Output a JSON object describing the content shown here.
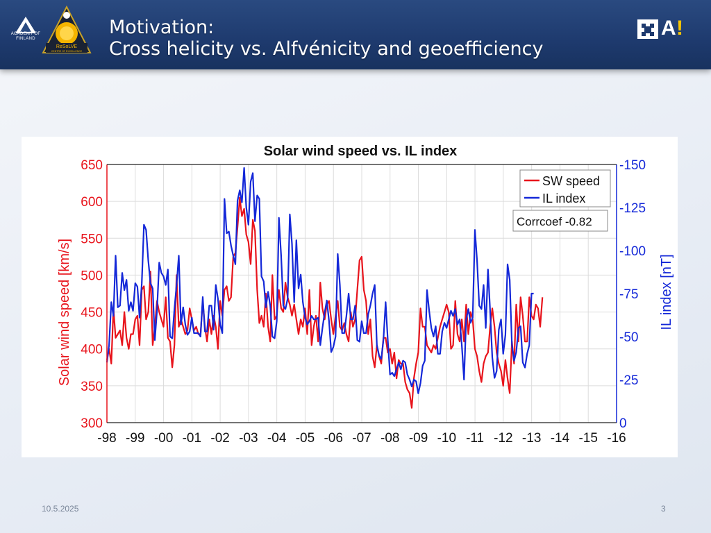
{
  "slide": {
    "title_line1": "Motivation:",
    "title_line2": "Cross helicity vs. Alfvénicity and geoefficiency",
    "date": "10.5.2025",
    "page_number": "3",
    "logo_left_text": "ACADEMY OF FINLAND",
    "logo_center_text": "ReSoLVE",
    "logo_center_subtext": "CENTRE OF EXCELLENCE",
    "logo_right_text": "A",
    "logo_right_accent": "!"
  },
  "chart_data": {
    "type": "line",
    "title": "Solar wind speed vs. IL index",
    "ylabel": "Solar wind speed [km/s]",
    "y2label": "IL index [nT]",
    "xlabel": "",
    "x_tick_labels": [
      "-98",
      "-99",
      "-00",
      "-01",
      "-02",
      "-03",
      "-04",
      "-05",
      "-06",
      "-07",
      "-08",
      "-09",
      "-10",
      "-11",
      "-12",
      "-13",
      "-14",
      "-15",
      "-16"
    ],
    "xlim": [
      1998,
      2016
    ],
    "ylim": [
      300,
      650
    ],
    "y_ticks": [
      300,
      350,
      400,
      450,
      500,
      550,
      600,
      650
    ],
    "y2lim": [
      0,
      -150
    ],
    "y2_ticks": [
      0,
      -25,
      -50,
      -75,
      -100,
      -125,
      -150
    ],
    "grid": true,
    "legend_position": "top-right",
    "annotation": "Corrcoef -0.82",
    "colors": {
      "sw": "#e8141c",
      "il": "#1428d8",
      "axis_left": "#e8141c",
      "axis_right": "#1428d8"
    },
    "series": [
      {
        "name": "SW speed",
        "axis": "left",
        "x_start": 1998.0,
        "x_step": 0.0769,
        "values": [
          385,
          400,
          380,
          455,
          415,
          420,
          425,
          405,
          450,
          415,
          400,
          420,
          420,
          440,
          445,
          405,
          480,
          485,
          440,
          450,
          505,
          405,
          430,
          465,
          450,
          440,
          430,
          470,
          415,
          410,
          375,
          405,
          500,
          430,
          440,
          430,
          420,
          425,
          455,
          440,
          425,
          430,
          420,
          420,
          465,
          430,
          410,
          440,
          420,
          445,
          430,
          400,
          465,
          445,
          480,
          485,
          465,
          470,
          525,
          530,
          565,
          605,
          580,
          590,
          555,
          545,
          515,
          575,
          560,
          480,
          435,
          445,
          430,
          475,
          430,
          410,
          500,
          440,
          445,
          480,
          455,
          450,
          490,
          470,
          460,
          445,
          460,
          440,
          420,
          440,
          430,
          455,
          420,
          480,
          405,
          430,
          445,
          410,
          490,
          455,
          440,
          460,
          465,
          440,
          420,
          445,
          465,
          430,
          425,
          435,
          420,
          410,
          450,
          430,
          440,
          480,
          520,
          525,
          480,
          465,
          420,
          440,
          390,
          375,
          405,
          390,
          380,
          415,
          415,
          395,
          400,
          380,
          395,
          360,
          385,
          380,
          380,
          355,
          345,
          340,
          320,
          360,
          380,
          395,
          455,
          430,
          430,
          405,
          400,
          395,
          405,
          400,
          415,
          430,
          440,
          450,
          460,
          450,
          400,
          405,
          465,
          420,
          410,
          440,
          410,
          460,
          420,
          450,
          440,
          400,
          390,
          370,
          355,
          380,
          390,
          395,
          430,
          455,
          430,
          395,
          380,
          370,
          350,
          385,
          360,
          340,
          410,
          380,
          460,
          410,
          470,
          445,
          410,
          410,
          470,
          445,
          440,
          460,
          455,
          430,
          470
        ]
      },
      {
        "name": "IL index",
        "axis": "right",
        "x_start": 1998.0,
        "x_step": 0.0769,
        "values": [
          -35,
          -45,
          -70,
          -62,
          -97,
          -67,
          -68,
          -87,
          -77,
          -83,
          -65,
          -70,
          -65,
          -81,
          -79,
          -61,
          -81,
          -115,
          -112,
          -94,
          -81,
          -78,
          -48,
          -65,
          -93,
          -87,
          -85,
          -80,
          -89,
          -50,
          -49,
          -66,
          -80,
          -97,
          -57,
          -67,
          -57,
          -51,
          -53,
          -61,
          -52,
          -52,
          -52,
          -50,
          -73,
          -53,
          -53,
          -68,
          -68,
          -54,
          -80,
          -72,
          -57,
          -52,
          -130,
          -110,
          -111,
          -103,
          -97,
          -92,
          -129,
          -135,
          -128,
          -148,
          -125,
          -115,
          -140,
          -145,
          -117,
          -132,
          -130,
          -85,
          -82,
          -67,
          -76,
          -68,
          -50,
          -49,
          -59,
          -119,
          -97,
          -68,
          -66,
          -72,
          -121,
          -104,
          -70,
          -106,
          -78,
          -86,
          -70,
          -61,
          -57,
          -59,
          -62,
          -60,
          -60,
          -61,
          -45,
          -55,
          -64,
          -71,
          -59,
          -41,
          -44,
          -50,
          -98,
          -80,
          -52,
          -52,
          -62,
          -75,
          -60,
          -60,
          -68,
          -48,
          -47,
          -59,
          -52,
          -52,
          -63,
          -68,
          -75,
          -80,
          -45,
          -39,
          -37,
          -48,
          -70,
          -48,
          -28,
          -29,
          -27,
          -31,
          -35,
          -31,
          -36,
          -35,
          -28,
          -25,
          -21,
          -25,
          -24,
          -17,
          -23,
          -33,
          -36,
          -77,
          -65,
          -55,
          -50,
          -56,
          -40,
          -40,
          -53,
          -58,
          -55,
          -60,
          -65,
          -62,
          -66,
          -57,
          -60,
          -45,
          -25,
          -60,
          -66,
          -58,
          -61,
          -112,
          -94,
          -68,
          -66,
          -80,
          -55,
          -89,
          -65,
          -38,
          -26,
          -30,
          -54,
          -60,
          -40,
          -51,
          -92,
          -83,
          -45,
          -36,
          -41,
          -55,
          -56,
          -35,
          -32,
          -40,
          -45,
          -75,
          -75
        ]
      }
    ]
  }
}
